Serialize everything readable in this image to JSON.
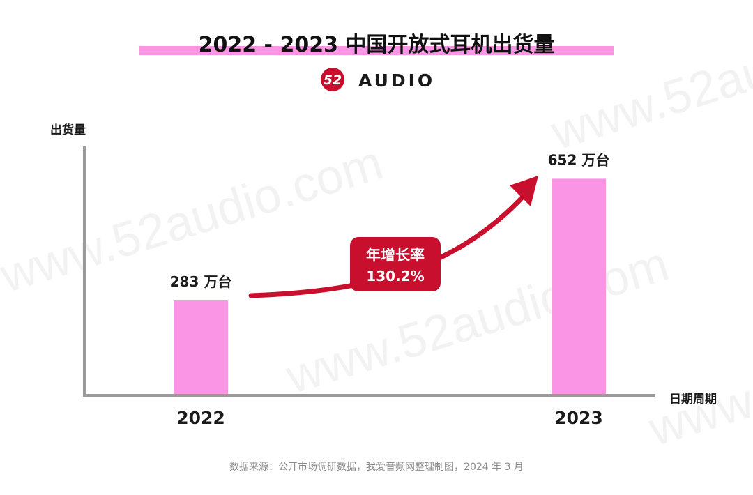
{
  "title": "2022 - 2023 中国开放式耳机出货量",
  "logo": {
    "mark": "52",
    "text": "AUDIO"
  },
  "watermark": "www.52audio.com",
  "growth_badge": {
    "label": "年增长率",
    "value": "130.2%"
  },
  "source_note": "数据来源：公开市场调研数据，我爱音频网整理制图，2024 年 3 月",
  "colors": {
    "bar": "#f995e4",
    "title_highlight": "#f995e4",
    "accent_red": "#c8102e",
    "axis": "#9a9a9a",
    "text": "#1a1a1a",
    "source_text": "#8a8a8a"
  },
  "chart_data": {
    "type": "bar",
    "title": "2022 - 2023 中国开放式耳机出货量",
    "xlabel": "日期周期",
    "ylabel": "出货量",
    "categories": [
      "2022",
      "2023"
    ],
    "values": [
      283,
      652
    ],
    "unit": "万台",
    "data_labels": [
      "283 万台",
      "652 万台"
    ],
    "ylim": [
      0,
      750
    ],
    "grid": false,
    "legend": "none",
    "annotation": {
      "text": "年增长率 130.2%",
      "growth_percent": 130.2
    }
  }
}
